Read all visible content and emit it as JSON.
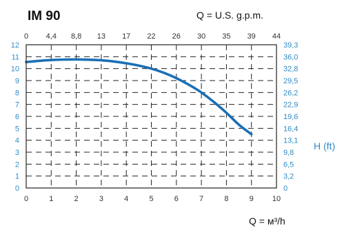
{
  "chart_data": {
    "type": "line",
    "title": "IM 90",
    "top_axis_label": "Q = U.S. g.p.m.",
    "bottom_axis_label": "Q = м³/h",
    "right_axis_label": "H (ft)",
    "x_bottom_ticks": [
      "0",
      "1",
      "2",
      "3",
      "4",
      "5",
      "6",
      "7",
      "8",
      "9",
      "10"
    ],
    "x_top_ticks": [
      "0",
      "4,4",
      "8,8",
      "13",
      "17",
      "22",
      "26",
      "30",
      "35",
      "39",
      "44"
    ],
    "y_left_ticks": [
      "0",
      "1",
      "2",
      "3",
      "4",
      "5",
      "6",
      "7",
      "8",
      "9",
      "10",
      "11",
      "12"
    ],
    "y_right_ticks": [
      "0",
      "3,2",
      "6,5",
      "9,8",
      "13,1",
      "16,4",
      "19,6",
      "22,9",
      "26,2",
      "29,5",
      "32,8",
      "36,0",
      "39,3"
    ],
    "xlim": [
      0,
      10
    ],
    "ylim": [
      0,
      12
    ],
    "grid": true,
    "series": [
      {
        "x": [
          0,
          0.5,
          1,
          1.5,
          2,
          2.5,
          3,
          3.5,
          4,
          4.5,
          5,
          5.5,
          6,
          6.5,
          7,
          7.5,
          8,
          8.5,
          9
        ],
        "y": [
          10.55,
          10.65,
          10.72,
          10.76,
          10.77,
          10.75,
          10.7,
          10.6,
          10.45,
          10.25,
          10.0,
          9.65,
          9.2,
          8.65,
          8.0,
          7.2,
          6.3,
          5.3,
          4.5
        ]
      }
    ],
    "colors": {
      "curve": "#1a6fb5",
      "grid": "#222222",
      "tick_blue": "#2f8bc9"
    }
  }
}
